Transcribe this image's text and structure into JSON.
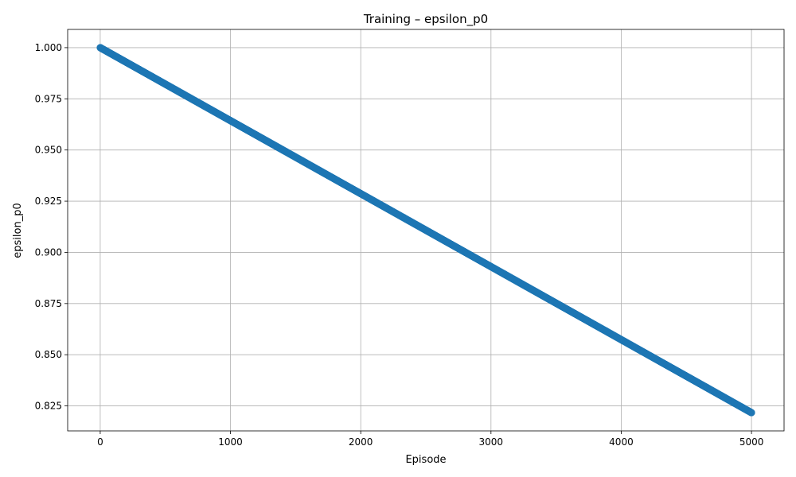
{
  "chart_data": {
    "type": "scatter",
    "title": "Training – epsilon_p0",
    "xlabel": "Episode",
    "ylabel": "epsilon_p0",
    "xlim": [
      -250,
      5250
    ],
    "ylim": [
      0.8128,
      1.0089
    ],
    "x_ticks": [
      0,
      1000,
      2000,
      3000,
      4000,
      5000
    ],
    "x_tick_labels": [
      "0",
      "1000",
      "2000",
      "3000",
      "4000",
      "5000"
    ],
    "y_ticks": [
      0.825,
      0.85,
      0.875,
      0.9,
      0.925,
      0.95,
      0.975,
      1.0
    ],
    "y_tick_labels": [
      "0.825",
      "0.850",
      "0.875",
      "0.900",
      "0.925",
      "0.950",
      "0.975",
      "1.000"
    ],
    "grid": true,
    "series": [
      {
        "color": "#1f77b4",
        "marker": "circle",
        "x_start": 0,
        "x_end": 5000,
        "x_step": 1,
        "y_start": 1.0,
        "y_end": 0.8217,
        "decay": "linear"
      }
    ]
  }
}
